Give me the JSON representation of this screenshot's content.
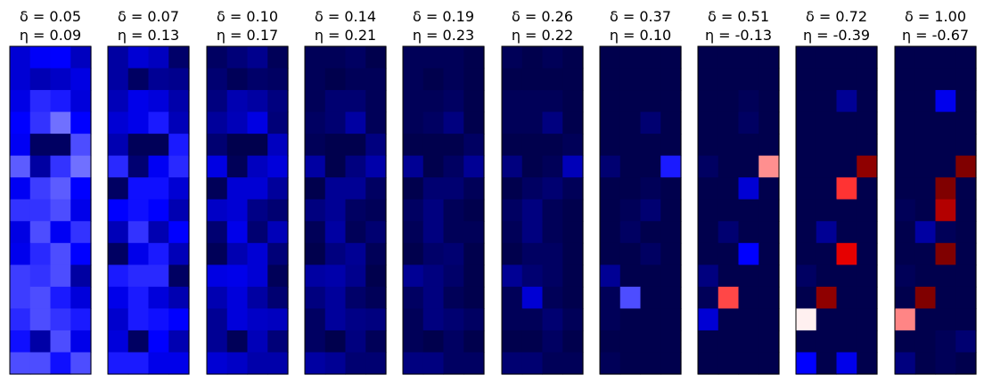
{
  "chart_data": {
    "type": "heatmap",
    "rows": 15,
    "cols": 4,
    "colormap": {
      "name": "seismic",
      "range": [
        -1,
        1
      ],
      "stops": [
        "#00004d",
        "#0000ff",
        "#ffffff",
        "#ff0000",
        "#800000"
      ]
    },
    "axes_visible": false,
    "panels": [
      {
        "delta_label": "δ = 0.05",
        "eta_label": "η = 0.09",
        "grid": [
          [
            -0.62,
            -0.52,
            -0.5,
            -0.68
          ],
          [
            -0.62,
            -0.71,
            -0.66,
            -0.58
          ],
          [
            -0.57,
            -0.42,
            -0.45,
            -0.6
          ],
          [
            -0.5,
            -0.4,
            -0.28,
            -0.5
          ],
          [
            -0.53,
            -0.94,
            -0.94,
            -0.35
          ],
          [
            -0.32,
            -0.76,
            -0.4,
            -0.28
          ],
          [
            -0.53,
            -0.38,
            -0.32,
            -0.5
          ],
          [
            -0.4,
            -0.4,
            -0.35,
            -0.56
          ],
          [
            -0.58,
            -0.35,
            -0.53,
            -0.4
          ],
          [
            -0.55,
            -0.42,
            -0.35,
            -0.5
          ],
          [
            -0.38,
            -0.4,
            -0.35,
            -0.76
          ],
          [
            -0.38,
            -0.35,
            -0.45,
            -0.6
          ],
          [
            -0.42,
            -0.35,
            -0.4,
            -0.45
          ],
          [
            -0.47,
            -0.75,
            -0.35,
            -0.56
          ],
          [
            -0.35,
            -0.35,
            -0.47,
            -0.35
          ]
        ]
      },
      {
        "delta_label": "δ = 0.07",
        "eta_label": "η = 0.13",
        "grid": [
          [
            -0.76,
            -0.62,
            -0.68,
            -0.92
          ],
          [
            -0.76,
            -0.94,
            -0.8,
            -0.82
          ],
          [
            -0.7,
            -0.56,
            -0.6,
            -0.74
          ],
          [
            -0.62,
            -0.56,
            -0.45,
            -0.7
          ],
          [
            -0.72,
            -0.97,
            -0.97,
            -0.45
          ],
          [
            -0.42,
            -0.9,
            -0.53,
            -0.42
          ],
          [
            -0.94,
            -0.47,
            -0.47,
            -0.62
          ],
          [
            -0.5,
            -0.47,
            -0.5,
            -0.72
          ],
          [
            -0.7,
            -0.4,
            -0.72,
            -0.5
          ],
          [
            -0.94,
            -0.56,
            -0.45,
            -0.7
          ],
          [
            -0.45,
            -0.42,
            -0.42,
            -0.94
          ],
          [
            -0.56,
            -0.45,
            -0.6,
            -0.72
          ],
          [
            -0.64,
            -0.45,
            -0.47,
            -0.5
          ],
          [
            -0.6,
            -0.94,
            -0.5,
            -0.72
          ],
          [
            -0.45,
            -0.45,
            -0.56,
            -0.56
          ]
        ]
      },
      {
        "delta_label": "δ = 0.10",
        "eta_label": "η = 0.17",
        "grid": [
          [
            -0.94,
            -0.88,
            -0.82,
            -0.97
          ],
          [
            -0.9,
            -0.97,
            -0.92,
            -0.94
          ],
          [
            -0.86,
            -0.72,
            -0.76,
            -0.86
          ],
          [
            -0.78,
            -0.7,
            -0.58,
            -0.88
          ],
          [
            -0.9,
            -1.03,
            -1.03,
            -0.68
          ],
          [
            -0.58,
            -0.97,
            -0.68,
            -0.6
          ],
          [
            -0.97,
            -0.62,
            -0.62,
            -0.78
          ],
          [
            -0.66,
            -0.62,
            -0.84,
            -0.9
          ],
          [
            -0.9,
            -0.56,
            -0.9,
            -0.7
          ],
          [
            -0.97,
            -0.72,
            -0.62,
            -0.88
          ],
          [
            -0.58,
            -0.56,
            -0.62,
            -0.97
          ],
          [
            -0.72,
            -0.6,
            -0.76,
            -0.9
          ],
          [
            -0.8,
            -0.6,
            -0.66,
            -0.68
          ],
          [
            -0.8,
            -0.97,
            -0.7,
            -0.88
          ],
          [
            -0.62,
            -0.66,
            -0.74,
            -0.74
          ]
        ]
      },
      {
        "delta_label": "δ = 0.14",
        "eta_label": "η = 0.21",
        "grid": [
          [
            -0.97,
            -0.97,
            -0.94,
            -1.03
          ],
          [
            -0.97,
            -1.03,
            -0.97,
            -0.97
          ],
          [
            -0.97,
            -0.9,
            -0.9,
            -0.97
          ],
          [
            -0.94,
            -0.9,
            -0.76,
            -0.97
          ],
          [
            -0.97,
            -1.06,
            -1.06,
            -0.86
          ],
          [
            -0.76,
            -1.03,
            -0.86,
            -0.74
          ],
          [
            -1.03,
            -0.8,
            -0.8,
            -0.94
          ],
          [
            -0.86,
            -0.8,
            -0.94,
            -0.97
          ],
          [
            -0.97,
            -0.76,
            -0.97,
            -0.9
          ],
          [
            -1.03,
            -0.86,
            -0.8,
            -0.97
          ],
          [
            -0.76,
            -0.74,
            -0.82,
            -1.03
          ],
          [
            -0.86,
            -0.78,
            -0.92,
            -0.97
          ],
          [
            -0.94,
            -0.78,
            -0.84,
            -0.86
          ],
          [
            -0.94,
            -1.03,
            -0.86,
            -0.97
          ],
          [
            -0.76,
            -0.8,
            -0.9,
            -0.9
          ]
        ]
      },
      {
        "delta_label": "δ = 0.19",
        "eta_label": "η = 0.23",
        "grid": [
          [
            -0.97,
            -0.97,
            -0.97,
            -1.03
          ],
          [
            -0.97,
            -1.03,
            -0.97,
            -1.0
          ],
          [
            -0.97,
            -0.97,
            -0.94,
            -1.0
          ],
          [
            -0.97,
            -0.94,
            -0.86,
            -1.0
          ],
          [
            -1.0,
            -1.09,
            -1.09,
            -0.94
          ],
          [
            -0.8,
            -1.06,
            -0.94,
            -0.8
          ],
          [
            -1.06,
            -0.9,
            -0.9,
            -0.97
          ],
          [
            -0.94,
            -0.86,
            -0.97,
            -1.0
          ],
          [
            -0.97,
            -0.86,
            -0.97,
            -0.97
          ],
          [
            -1.06,
            -0.92,
            -0.9,
            -1.0
          ],
          [
            -0.8,
            -0.86,
            -0.92,
            -1.06
          ],
          [
            -0.94,
            -0.86,
            -0.97,
            -1.0
          ],
          [
            -0.97,
            -0.86,
            -0.9,
            -0.94
          ],
          [
            -0.97,
            -1.06,
            -0.94,
            -1.0
          ],
          [
            -0.86,
            -0.86,
            -0.94,
            -0.94
          ]
        ]
      },
      {
        "delta_label": "δ = 0.26",
        "eta_label": "η = 0.22",
        "grid": [
          [
            -0.97,
            -1.0,
            -0.97,
            -1.03
          ],
          [
            -1.0,
            -1.03,
            -1.0,
            -1.0
          ],
          [
            -0.97,
            -0.97,
            -0.97,
            -1.0
          ],
          [
            -0.97,
            -0.97,
            -0.86,
            -1.0
          ],
          [
            -1.03,
            -1.09,
            -1.09,
            -0.97
          ],
          [
            -0.86,
            -1.06,
            -0.97,
            -0.7
          ],
          [
            -1.06,
            -0.94,
            -0.9,
            -0.97
          ],
          [
            -0.94,
            -0.86,
            -0.97,
            -1.0
          ],
          [
            -0.97,
            -0.86,
            -0.97,
            -1.0
          ],
          [
            -1.06,
            -0.94,
            -0.94,
            -1.0
          ],
          [
            -0.8,
            -0.9,
            -0.94,
            -1.06
          ],
          [
            -0.97,
            -0.62,
            -0.97,
            -1.0
          ],
          [
            -0.97,
            -0.97,
            -0.9,
            -0.97
          ],
          [
            -1.0,
            -1.06,
            -0.94,
            -1.0
          ],
          [
            -0.9,
            -0.9,
            -0.97,
            -0.97
          ]
        ]
      },
      {
        "delta_label": "δ = 0.37",
        "eta_label": "η = 0.10",
        "grid": [
          [
            -1.03,
            -1.06,
            -1.03,
            -1.06
          ],
          [
            -1.06,
            -1.09,
            -1.06,
            -1.06
          ],
          [
            -1.03,
            -1.03,
            -1.0,
            -1.06
          ],
          [
            -1.03,
            -1.03,
            -0.9,
            -1.06
          ],
          [
            -1.06,
            -1.12,
            -1.12,
            -1.03
          ],
          [
            -0.9,
            -1.09,
            -1.03,
            -0.45
          ],
          [
            -1.09,
            -1.0,
            -0.97,
            -1.03
          ],
          [
            -1.0,
            -0.97,
            -0.9,
            -1.06
          ],
          [
            -1.03,
            -0.94,
            -1.0,
            -1.06
          ],
          [
            -1.09,
            -1.0,
            -0.94,
            -1.06
          ],
          [
            -0.8,
            -1.0,
            -1.0,
            -1.09
          ],
          [
            -0.97,
            -0.35,
            -1.03,
            -1.06
          ],
          [
            -0.97,
            -1.06,
            -1.0,
            -1.03
          ],
          [
            -1.06,
            -1.09,
            -1.03,
            -1.06
          ],
          [
            -0.97,
            -1.03,
            -1.06,
            -1.06
          ]
        ]
      },
      {
        "delta_label": "δ = 0.51",
        "eta_label": "η = -0.13",
        "grid": [
          [
            -1.06,
            -1.09,
            -1.06,
            -1.09
          ],
          [
            -1.09,
            -1.12,
            -1.09,
            -1.09
          ],
          [
            -1.06,
            -1.03,
            -0.97,
            -1.09
          ],
          [
            -1.06,
            -1.06,
            -0.94,
            -1.09
          ],
          [
            -1.09,
            -1.12,
            -1.12,
            -1.06
          ],
          [
            -0.94,
            -1.12,
            -1.06,
            0.22
          ],
          [
            -1.09,
            -1.0,
            -0.62,
            -1.03
          ],
          [
            -1.03,
            -1.03,
            -1.03,
            -1.09
          ],
          [
            -1.06,
            -0.9,
            -1.03,
            -1.09
          ],
          [
            -1.09,
            -1.03,
            -0.5,
            -1.09
          ],
          [
            -0.86,
            -1.03,
            -1.06,
            -1.12
          ],
          [
            -0.97,
            0.36,
            -1.06,
            -1.09
          ],
          [
            -0.62,
            -1.09,
            -1.03,
            -1.06
          ],
          [
            -1.09,
            -1.12,
            -1.06,
            -1.09
          ],
          [
            -1.03,
            -1.06,
            -1.09,
            -1.09
          ]
        ]
      },
      {
        "delta_label": "δ = 0.72",
        "eta_label": "η = -0.39",
        "grid": [
          [
            -1.09,
            -1.12,
            -1.09,
            -1.12
          ],
          [
            -1.12,
            -1.12,
            -1.12,
            -1.12
          ],
          [
            -1.09,
            -1.06,
            -0.8,
            -1.12
          ],
          [
            -1.09,
            -1.09,
            -1.0,
            -1.12
          ],
          [
            -1.12,
            -1.12,
            -1.12,
            -1.09
          ],
          [
            -1.0,
            -1.12,
            -1.09,
            0.94
          ],
          [
            -1.12,
            -1.06,
            0.4,
            -1.06
          ],
          [
            -1.06,
            -1.06,
            -1.06,
            -1.12
          ],
          [
            -1.09,
            -0.8,
            -1.06,
            -1.12
          ],
          [
            -1.12,
            -1.06,
            0.6,
            -1.12
          ],
          [
            -0.94,
            -1.06,
            -1.09,
            -1.12
          ],
          [
            -1.0,
            0.94,
            -1.09,
            -1.12
          ],
          [
            0.03,
            -1.12,
            -1.06,
            -1.09
          ],
          [
            -1.12,
            -1.12,
            -1.09,
            -1.0
          ],
          [
            -0.5,
            -1.06,
            -0.56,
            -1.12
          ]
        ]
      },
      {
        "delta_label": "δ = 1.00",
        "eta_label": "η = -0.67",
        "grid": [
          [
            -1.12,
            -1.12,
            -1.12,
            -1.12
          ],
          [
            -1.12,
            -1.12,
            -1.12,
            -1.12
          ],
          [
            -1.12,
            -1.09,
            -0.55,
            -1.12
          ],
          [
            -1.12,
            -1.12,
            -1.06,
            -1.12
          ],
          [
            -1.12,
            -1.12,
            -1.12,
            -1.12
          ],
          [
            -1.06,
            -1.12,
            -1.12,
            1.35
          ],
          [
            -1.12,
            -1.09,
            1.25,
            -1.09
          ],
          [
            -0.97,
            -1.06,
            0.8,
            -1.09
          ],
          [
            -1.09,
            -0.76,
            -0.97,
            -1.12
          ],
          [
            -1.12,
            -1.09,
            1.35,
            -1.12
          ],
          [
            -0.97,
            -1.09,
            -1.12,
            -1.12
          ],
          [
            -1.03,
            1.35,
            -1.09,
            -1.12
          ],
          [
            0.24,
            -1.09,
            -1.06,
            -1.09
          ],
          [
            -1.12,
            -1.0,
            -0.97,
            -0.9
          ],
          [
            -0.86,
            -1.12,
            -0.97,
            -1.12
          ]
        ]
      }
    ]
  }
}
